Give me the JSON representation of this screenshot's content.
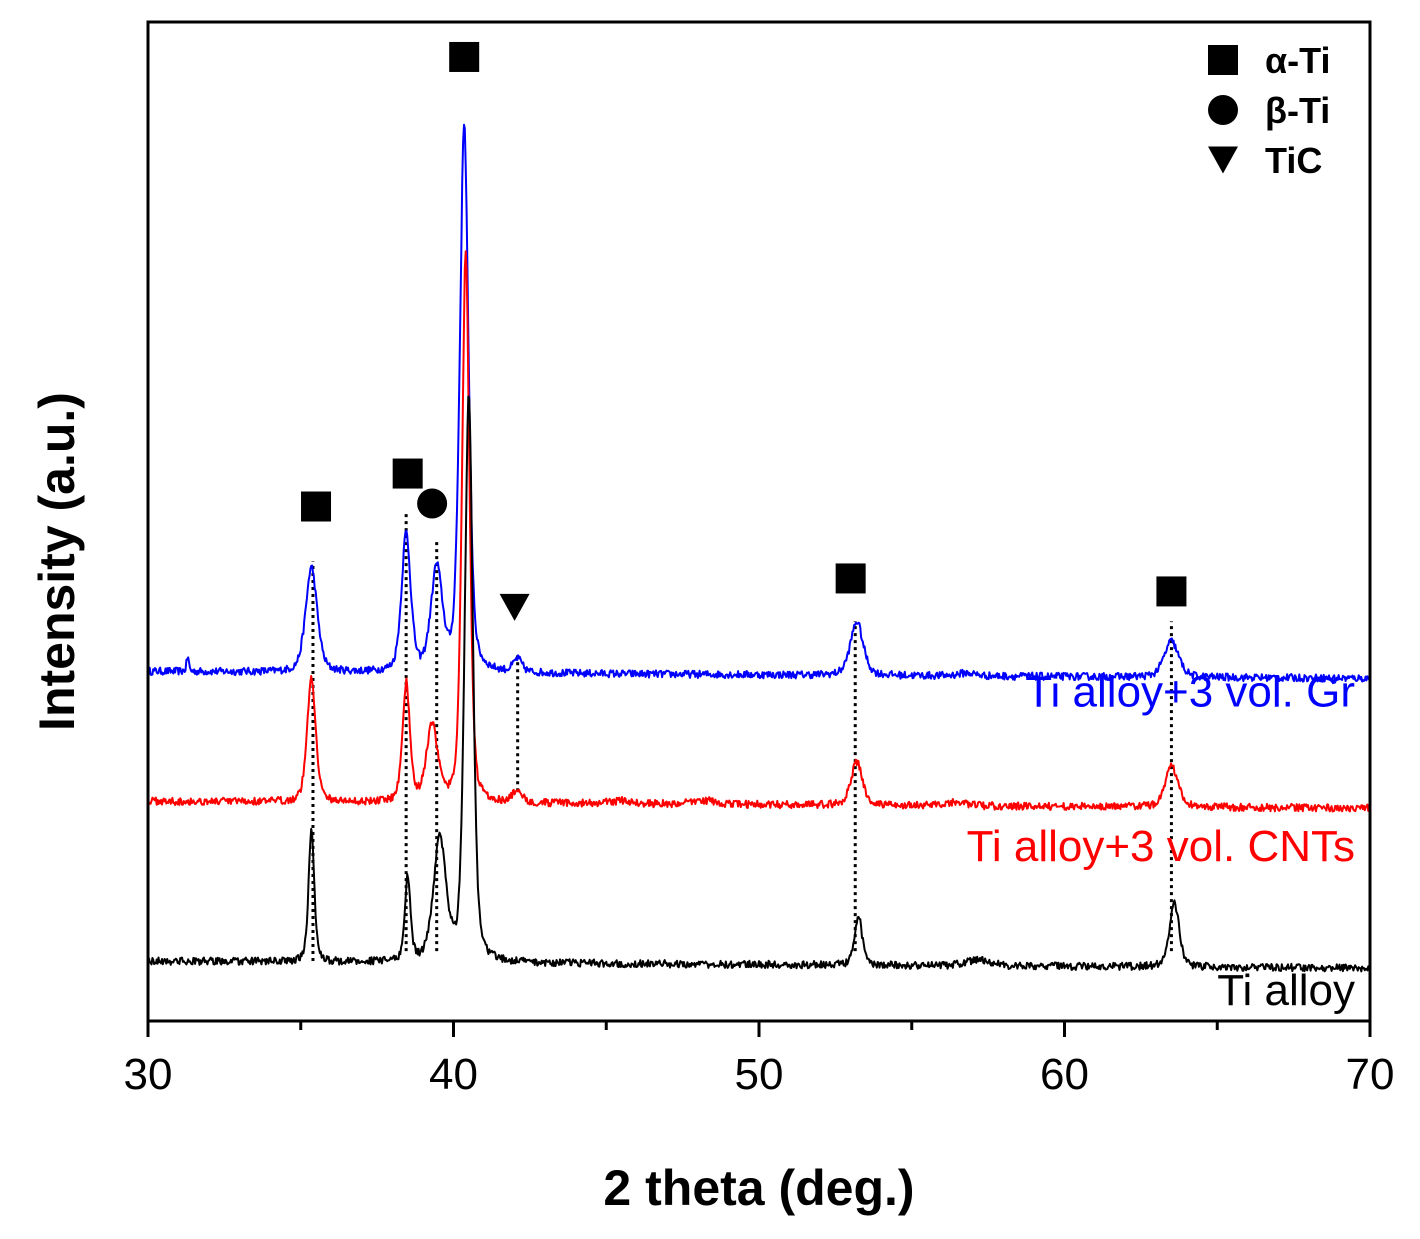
{
  "chart_data": {
    "type": "line",
    "title": "",
    "xlabel": "2 theta (deg.)",
    "ylabel": "Intensity (a.u.)",
    "xlim": [
      30,
      70
    ],
    "ylim": [
      0,
      100
    ],
    "x_ticks": [
      "30",
      "40",
      "50",
      "60",
      "70"
    ],
    "x_tick_values": [
      30,
      40,
      50,
      60,
      70
    ],
    "minor_tick_values": [
      35,
      45,
      55,
      65
    ],
    "grid": false,
    "legend": {
      "placement": "top-right",
      "entries": [
        {
          "marker": "square",
          "label": "α-Ti"
        },
        {
          "marker": "circle",
          "label": "β-Ti"
        },
        {
          "marker": "triangle-down",
          "label": "TiC"
        }
      ]
    },
    "series": [
      {
        "name": "Ti alloy+3 vol. Gr",
        "color": "#0000ff",
        "baseline": 35,
        "peaks": [
          [
            31.3,
            1.5,
            0.04
          ],
          [
            35.35,
            10.5,
            0.2
          ],
          [
            38.45,
            13.8,
            0.16
          ],
          [
            39.45,
            10.2,
            0.2
          ],
          [
            40.35,
            55.0,
            0.15
          ],
          [
            42.1,
            1.3,
            0.15
          ],
          [
            53.2,
            5.4,
            0.22
          ],
          [
            56.8,
            0.3,
            0.3
          ],
          [
            63.5,
            3.6,
            0.25
          ]
        ]
      },
      {
        "name": "Ti alloy+3 vol. CNTs",
        "color": "#ff0000",
        "baseline": 22,
        "peaks": [
          [
            35.35,
            12.5,
            0.15
          ],
          [
            38.45,
            11.8,
            0.13
          ],
          [
            39.3,
            7.5,
            0.2
          ],
          [
            40.4,
            55.0,
            0.13
          ],
          [
            42.1,
            1.3,
            0.15
          ],
          [
            45.5,
            0.3,
            0.4
          ],
          [
            48.2,
            0.4,
            0.4
          ],
          [
            53.2,
            4.3,
            0.2
          ],
          [
            56.5,
            0.4,
            0.3
          ],
          [
            63.5,
            4.2,
            0.22
          ]
        ]
      },
      {
        "name": "Ti alloy",
        "color": "#000000",
        "baseline": 6,
        "peaks": [
          [
            35.35,
            13.2,
            0.1
          ],
          [
            38.5,
            8.4,
            0.1
          ],
          [
            39.55,
            12.2,
            0.22
          ],
          [
            40.5,
            57.0,
            0.14
          ],
          [
            53.25,
            5.0,
            0.13
          ],
          [
            57.2,
            0.6,
            0.4
          ],
          [
            63.6,
            6.3,
            0.17
          ]
        ]
      }
    ],
    "reference_lines": [
      {
        "x": 35.4,
        "from": 6,
        "to": 46
      },
      {
        "x": 38.45,
        "from": 7,
        "to": 51
      },
      {
        "x": 39.45,
        "from": 7,
        "to": 48
      },
      {
        "x": 42.1,
        "from": 23,
        "to": 37
      },
      {
        "x": 53.15,
        "from": 7,
        "to": 40
      },
      {
        "x": 63.5,
        "from": 7,
        "to": 40
      }
    ],
    "phase_markers": [
      {
        "x": 35.5,
        "y": 51.5,
        "marker": "square"
      },
      {
        "x": 38.5,
        "y": 54.8,
        "marker": "square"
      },
      {
        "x": 39.3,
        "y": 51.8,
        "marker": "circle"
      },
      {
        "x": 40.35,
        "y": 96.5,
        "marker": "square"
      },
      {
        "x": 42.0,
        "y": 41.4,
        "marker": "triangle-down"
      },
      {
        "x": 53.0,
        "y": 44.3,
        "marker": "square"
      },
      {
        "x": 63.5,
        "y": 43.0,
        "marker": "square"
      }
    ],
    "series_labels": [
      {
        "text": "Ti alloy+3 vol. Gr",
        "color": "#0000ff",
        "y": 31.5
      },
      {
        "text": "Ti alloy+3 vol. CNTs",
        "color": "#ff0000",
        "y": 16.0
      },
      {
        "text": "Ti alloy",
        "color": "#000000",
        "y": 1.6
      }
    ]
  }
}
